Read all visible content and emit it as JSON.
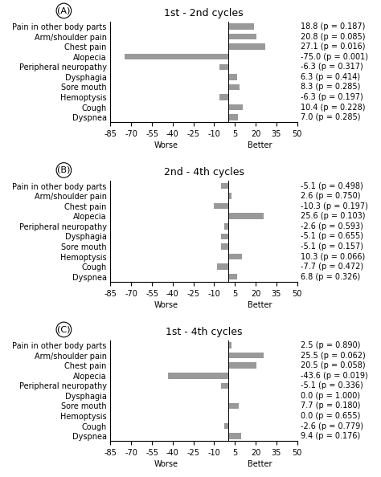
{
  "chart_data": [
    {
      "type": "bar",
      "orientation": "horizontal",
      "title": "1st - 2nd cycles",
      "categories": [
        "Pain in other body parts",
        "Arm/shoulder pain",
        "Chest pain",
        "Alopecia",
        "Peripheral neuropathy",
        "Dysphagia",
        "Sore mouth",
        "Hemoptysis",
        "Cough",
        "Dyspnea"
      ],
      "values": [
        18.8,
        20.8,
        27.1,
        -75.0,
        -6.3,
        6.3,
        8.3,
        -6.3,
        10.4,
        7.0
      ],
      "value_labels": [
        "18.8 (p = 0.187)",
        "20.8 (p = 0.085)",
        "27.1 (p = 0.016)",
        "-75.0 (p = 0.001)",
        "-6.3 (p = 0.317)",
        "6.3 (p = 0.414)",
        "8.3 (p = 0.285)",
        "-6.3 (p = 0.197)",
        "10.4 (p = 0.228)",
        "7.0 (p = 0.285)"
      ],
      "data_labels": true,
      "color": "#999999",
      "xlim": [
        -85,
        50
      ],
      "xticks": [
        -85,
        -70,
        -55,
        -40,
        -25,
        -10,
        5,
        20,
        35,
        50
      ],
      "annotations": [
        "(A)",
        "Worse",
        "Better"
      ]
    },
    {
      "type": "bar",
      "orientation": "horizontal",
      "title": "2nd - 4th cycles",
      "categories": [
        "Pain in other body parts",
        "Arm/shoulder pain",
        "Chest pain",
        "Alopecia",
        "Peripheral neuropathy",
        "Dysphagia",
        "Sore mouth",
        "Hemoptysis",
        "Cough",
        "Dyspnea"
      ],
      "values": [
        -5.1,
        2.6,
        -10.3,
        25.6,
        -2.6,
        -5.1,
        -5.1,
        10.3,
        -7.7,
        6.8
      ],
      "value_labels": [
        "-5.1 (p = 0.498)",
        "2.6 (p = 0.750)",
        "-10.3 (p = 0.197)",
        "25.6 (p = 0.103)",
        "-2.6 (p = 0.593)",
        "-5.1 (p = 0.655)",
        "-5.1 (p = 0.157)",
        "10.3 (p = 0.066)",
        "-7.7 (p = 0.472)",
        "6.8 (p = 0.326)"
      ],
      "data_labels": true,
      "color": "#999999",
      "xlim": [
        -85,
        50
      ],
      "xticks": [
        -85,
        -70,
        -55,
        -40,
        -25,
        -10,
        5,
        20,
        35,
        50
      ],
      "annotations": [
        "(B)",
        "Worse",
        "Better"
      ]
    },
    {
      "type": "bar",
      "orientation": "horizontal",
      "title": "1st - 4th cycles",
      "categories": [
        "Pain in other body parts",
        "Arm/shoulder pain",
        "Chest pain",
        "Alopecia",
        "Peripheral neuropathy",
        "Dysphagia",
        "Sore mouth",
        "Hemoptysis",
        "Cough",
        "Dyspnea"
      ],
      "values": [
        2.5,
        25.5,
        20.5,
        -43.6,
        -5.1,
        0.0,
        7.7,
        0.0,
        -2.6,
        9.4
      ],
      "value_labels": [
        "2.5 (p = 0.890)",
        "25.5 (p = 0.062)",
        "20.5 (p = 0.058)",
        "-43.6 (p = 0.019)",
        "-5.1 (p = 0.336)",
        "0.0 (p = 1.000)",
        "7.7 (p = 0.180)",
        "0.0 (p = 0.655)",
        "-2.6 (p = 0.779)",
        "9.4 (p = 0.176)"
      ],
      "data_labels": true,
      "color": "#999999",
      "xlim": [
        -85,
        50
      ],
      "xticks": [
        -85,
        -70,
        -55,
        -40,
        -25,
        -10,
        5,
        20,
        35,
        50
      ],
      "annotations": [
        "(C)",
        "Worse",
        "Better"
      ]
    }
  ]
}
